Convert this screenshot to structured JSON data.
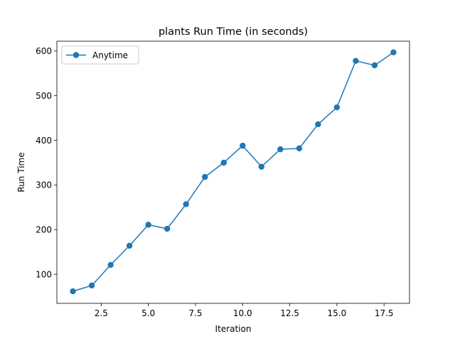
{
  "chart_data": {
    "type": "line",
    "title": "plants Run Time (in seconds)",
    "xlabel": "Iteration",
    "ylabel": "Run Time",
    "xlim": [
      0.15,
      18.85
    ],
    "ylim": [
      35,
      622
    ],
    "xticks": [
      2.5,
      5.0,
      7.5,
      10.0,
      12.5,
      15.0,
      17.5
    ],
    "xtick_labels": [
      "2.5",
      "5.0",
      "7.5",
      "10.0",
      "12.5",
      "15.0",
      "17.5"
    ],
    "yticks": [
      100,
      200,
      300,
      400,
      500,
      600
    ],
    "ytick_labels": [
      "100",
      "200",
      "300",
      "400",
      "500",
      "600"
    ],
    "grid": false,
    "legend": {
      "placement": "top-left"
    },
    "series": [
      {
        "name": "Anytime",
        "color": "#1f77b4",
        "x": [
          1,
          2,
          3,
          4,
          5,
          6,
          7,
          8,
          9,
          10,
          11,
          12,
          13,
          14,
          15,
          16,
          17,
          18
        ],
        "y": [
          62,
          75,
          121,
          164,
          211,
          202,
          257,
          318,
          350,
          388,
          341,
          380,
          382,
          436,
          474,
          578,
          568,
          597
        ]
      }
    ]
  }
}
